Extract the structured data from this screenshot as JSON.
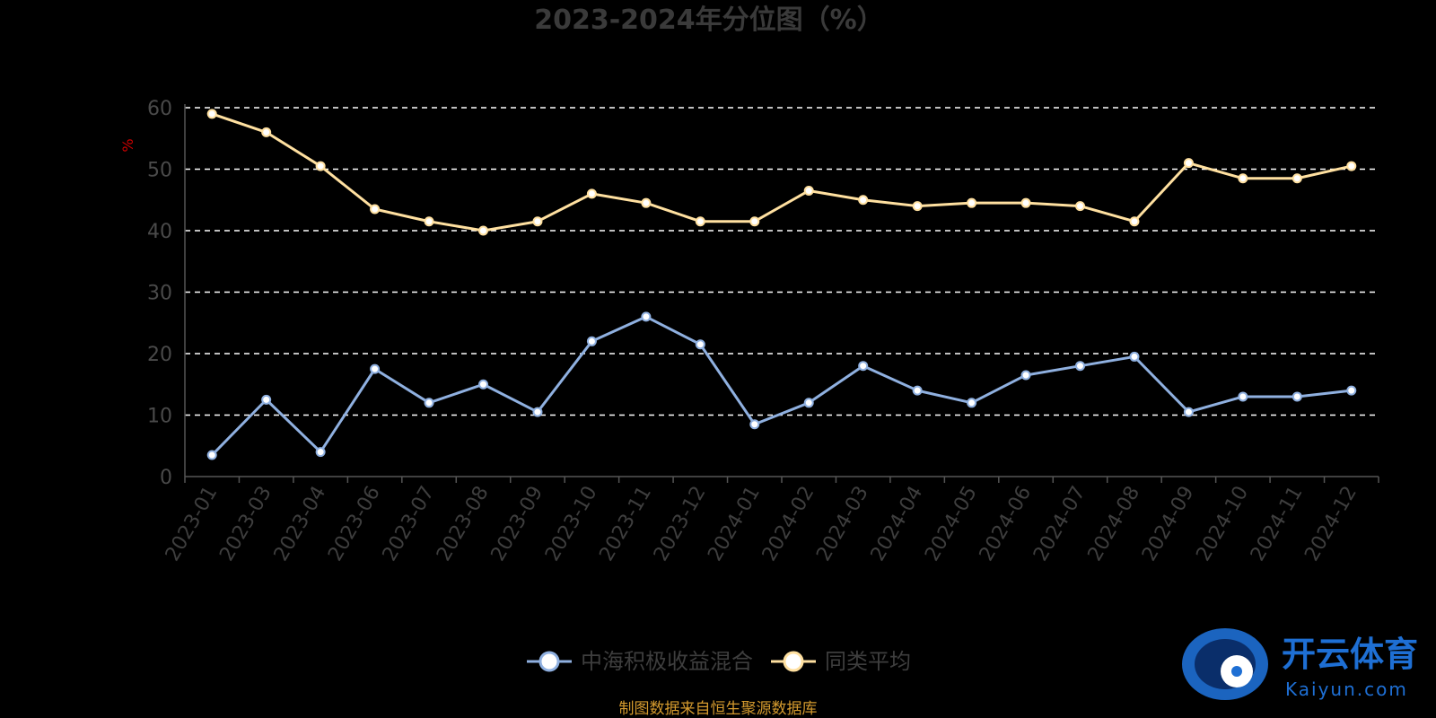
{
  "chart_data": {
    "type": "line",
    "title": "2023-2024年分位图（%）",
    "y_unit": "%",
    "ylim": [
      0,
      60
    ],
    "y_ticks": [
      0,
      10,
      20,
      30,
      40,
      50,
      60
    ],
    "grid": "horizontal dashed",
    "legend_position": "bottom-center",
    "categories": [
      "2023-01",
      "2023-03",
      "2023-04",
      "2023-06",
      "2023-07",
      "2023-08",
      "2023-09",
      "2023-10",
      "2023-11",
      "2023-12",
      "2024-01",
      "2024-02",
      "2024-03",
      "2024-04",
      "2024-05",
      "2024-06",
      "2024-07",
      "2024-08",
      "2024-09",
      "2024-10",
      "2024-11",
      "2024-12"
    ],
    "series": [
      {
        "name": "中海积极收益混合",
        "color": "#8fb0e0",
        "values": [
          3.5,
          12.5,
          4.0,
          17.5,
          12.0,
          15.0,
          10.5,
          22.0,
          26.0,
          21.5,
          8.5,
          12.0,
          18.0,
          14.0,
          12.0,
          16.5,
          18.0,
          19.5,
          10.5,
          13.0,
          13.0,
          14.0
        ]
      },
      {
        "name": "同类平均",
        "color": "#ffe0a0",
        "values": [
          59.0,
          56.0,
          50.5,
          43.5,
          41.5,
          40.0,
          41.5,
          46.0,
          44.5,
          41.5,
          41.5,
          46.5,
          45.0,
          44.0,
          44.5,
          44.5,
          44.0,
          41.5,
          51.0,
          48.5,
          48.5,
          50.5
        ]
      }
    ]
  },
  "footer": {
    "source": "制图数据来自恒生聚源数据库"
  },
  "watermark": {
    "brand": "开云体育",
    "url": "Kaiyun.com",
    "icon": "kaiyun-logo-icon"
  }
}
